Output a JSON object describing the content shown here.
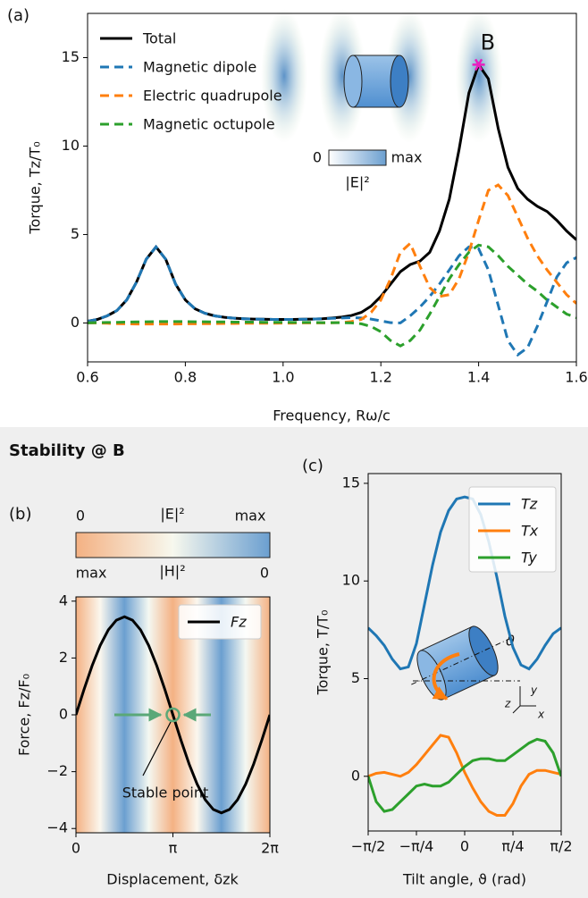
{
  "header": {
    "title": "Stability @ B"
  },
  "chart_data": [
    {
      "type": "line",
      "panel_label": "(a)",
      "x_label": "Frequency, Rω/c",
      "y_label": "Torque, Tz/T₀",
      "x": [
        0.6,
        0.62,
        0.64,
        0.66,
        0.68,
        0.7,
        0.72,
        0.74,
        0.76,
        0.78,
        0.8,
        0.82,
        0.84,
        0.86,
        0.88,
        0.9,
        0.92,
        0.94,
        0.96,
        0.98,
        1.0,
        1.02,
        1.04,
        1.06,
        1.08,
        1.1,
        1.12,
        1.14,
        1.16,
        1.18,
        1.2,
        1.22,
        1.24,
        1.26,
        1.28,
        1.3,
        1.32,
        1.34,
        1.36,
        1.38,
        1.4,
        1.42,
        1.44,
        1.46,
        1.48,
        1.5,
        1.52,
        1.54,
        1.56,
        1.58,
        1.6
      ],
      "series": [
        {
          "name": "Total",
          "color": "#000000",
          "linestyle": "solid",
          "values": [
            0.1,
            0.2,
            0.4,
            0.7,
            1.3,
            2.3,
            3.6,
            4.3,
            3.6,
            2.2,
            1.3,
            0.8,
            0.55,
            0.4,
            0.32,
            0.27,
            0.24,
            0.22,
            0.21,
            0.2,
            0.2,
            0.2,
            0.21,
            0.22,
            0.24,
            0.28,
            0.33,
            0.42,
            0.6,
            0.95,
            1.5,
            2.2,
            2.9,
            3.3,
            3.5,
            4.0,
            5.2,
            7.0,
            9.8,
            13.0,
            14.6,
            13.8,
            11.0,
            8.8,
            7.6,
            7.0,
            6.6,
            6.3,
            5.8,
            5.2,
            4.7
          ]
        },
        {
          "name": "Magnetic dipole",
          "color": "#1f77b4",
          "linestyle": "dashed",
          "values": [
            0.1,
            0.2,
            0.4,
            0.7,
            1.3,
            2.3,
            3.6,
            4.3,
            3.6,
            2.2,
            1.3,
            0.8,
            0.55,
            0.4,
            0.32,
            0.27,
            0.24,
            0.22,
            0.21,
            0.2,
            0.2,
            0.2,
            0.21,
            0.22,
            0.24,
            0.26,
            0.28,
            0.3,
            0.28,
            0.22,
            0.12,
            0.02,
            0.0,
            0.4,
            0.9,
            1.5,
            2.2,
            3.0,
            3.8,
            4.3,
            4.2,
            3.0,
            1.0,
            -1.0,
            -1.8,
            -1.4,
            -0.2,
            1.2,
            2.6,
            3.4,
            3.7
          ]
        },
        {
          "name": "Electric quadrupole",
          "color": "#ff7f0e",
          "linestyle": "dashed",
          "values": [
            0,
            0,
            -0.02,
            -0.04,
            -0.05,
            -0.06,
            -0.06,
            -0.06,
            -0.06,
            -0.06,
            -0.05,
            -0.05,
            -0.04,
            -0.04,
            -0.03,
            -0.03,
            -0.02,
            -0.02,
            -0.02,
            -0.02,
            -0.01,
            -0.01,
            0,
            0,
            0,
            0.01,
            0.03,
            0.08,
            0.2,
            0.6,
            1.3,
            2.5,
            4.0,
            4.5,
            3.2,
            2.0,
            1.5,
            1.6,
            2.5,
            4.0,
            5.8,
            7.5,
            7.8,
            7.2,
            6.0,
            4.8,
            3.8,
            3.0,
            2.3,
            1.6,
            1.1
          ]
        },
        {
          "name": "Magnetic octupole",
          "color": "#2ca02c",
          "linestyle": "dashed",
          "values": [
            0,
            0.02,
            0.03,
            0.04,
            0.05,
            0.06,
            0.07,
            0.08,
            0.08,
            0.08,
            0.08,
            0.07,
            0.07,
            0.06,
            0.06,
            0.05,
            0.05,
            0.05,
            0.04,
            0.04,
            0.04,
            0.03,
            0.03,
            0.03,
            0.02,
            0.02,
            0.01,
            0.0,
            -0.05,
            -0.2,
            -0.5,
            -1.0,
            -1.3,
            -1.0,
            -0.4,
            0.5,
            1.5,
            2.5,
            3.3,
            4.0,
            4.4,
            4.3,
            3.8,
            3.2,
            2.7,
            2.2,
            1.8,
            1.3,
            0.9,
            0.5,
            0.3
          ]
        }
      ],
      "xlim": [
        0.6,
        1.6
      ],
      "xticks": [
        0.6,
        0.8,
        {
          "value": 1,
          "label": "1.0"
        },
        1.2,
        1.4,
        1.6
      ],
      "ylim": [
        -2.2,
        17.5
      ],
      "yticks": [
        0,
        5,
        10,
        15
      ],
      "legend": "upper left",
      "legend_frame": false,
      "marker": {
        "label": "B",
        "x": 1.4,
        "y": 14.6,
        "color": "#e91ec0"
      },
      "colorbar": {
        "min_label": "0",
        "max_label": "max",
        "label": "|E|²"
      }
    },
    {
      "type": "line",
      "panel_label": "(b)",
      "x_label": "Displacement, δzk",
      "y_label": "Force, Fz/F₀",
      "x": [
        0,
        0.2618,
        0.5236,
        0.7854,
        1.0472,
        1.309,
        1.5708,
        1.8326,
        2.0944,
        2.3562,
        2.618,
        2.8798,
        3.1416,
        3.4034,
        3.6652,
        3.927,
        4.1888,
        4.4506,
        4.7124,
        4.9742,
        5.236,
        5.4978,
        5.7596,
        6.0214,
        6.2832
      ],
      "series": [
        {
          "name": "Fz",
          "color": "#000000",
          "linestyle": "solid",
          "values": [
            0,
            0.89,
            1.73,
            2.44,
            2.99,
            3.33,
            3.45,
            3.33,
            2.99,
            2.44,
            1.73,
            0.89,
            0,
            -0.89,
            -1.73,
            -2.44,
            -2.99,
            -3.33,
            -3.45,
            -3.33,
            -2.99,
            -2.44,
            -1.73,
            -0.89,
            0
          ]
        }
      ],
      "xlim": [
        0,
        6.2832
      ],
      "xticks": [
        0,
        {
          "value": 3.1416,
          "label": "π"
        },
        {
          "value": 6.2832,
          "label": "2π"
        }
      ],
      "ylim": [
        -4.15,
        4.15
      ],
      "yticks": [
        {
          "value": -4,
          "label": "−4"
        },
        {
          "value": -2,
          "label": "−2"
        },
        0,
        2,
        4
      ],
      "legend": "upper right",
      "legend_frame": true,
      "stable_point": {
        "label": "Stable point",
        "x": 3.1416,
        "y": 0
      },
      "colorbars": [
        {
          "min_label": "0",
          "label": "|E|²",
          "max_label": "max"
        },
        {
          "min_label": "max",
          "label": "|H|²",
          "max_label": "0"
        }
      ]
    },
    {
      "type": "line",
      "panel_label": "(c)",
      "x_label": "Tilt angle, ϑ (rad)",
      "y_label": "Torque, T/T₀",
      "x": [
        -1.5708,
        -1.4399,
        -1.309,
        -1.1781,
        -1.0472,
        -0.9163,
        -0.7854,
        -0.6545,
        -0.5236,
        -0.3927,
        -0.2618,
        -0.1309,
        0,
        0.1309,
        0.2618,
        0.3927,
        0.5236,
        0.6545,
        0.7854,
        0.9163,
        1.0472,
        1.1781,
        1.309,
        1.4399,
        1.5708
      ],
      "series": [
        {
          "name": "Tz",
          "color": "#1f77b4",
          "linestyle": "solid",
          "values": [
            7.6,
            7.2,
            6.7,
            6.0,
            5.5,
            5.6,
            6.8,
            8.8,
            10.8,
            12.5,
            13.6,
            14.2,
            14.3,
            14.2,
            13.4,
            12.0,
            10.2,
            8.2,
            6.6,
            5.7,
            5.5,
            6.0,
            6.7,
            7.3,
            7.6
          ]
        },
        {
          "name": "Tx",
          "color": "#ff7f0e",
          "linestyle": "solid",
          "values": [
            0,
            0.15,
            0.2,
            0.1,
            0,
            0.2,
            0.6,
            1.1,
            1.6,
            2.1,
            2.0,
            1.2,
            0.2,
            -0.6,
            -1.3,
            -1.8,
            -2.0,
            -2.0,
            -1.4,
            -0.5,
            0.1,
            0.3,
            0.3,
            0.2,
            0.1
          ]
        },
        {
          "name": "Ty",
          "color": "#2ca02c",
          "linestyle": "solid",
          "values": [
            0,
            -1.3,
            -1.8,
            -1.7,
            -1.3,
            -0.9,
            -0.5,
            -0.4,
            -0.5,
            -0.5,
            -0.3,
            0.1,
            0.5,
            0.8,
            0.9,
            0.9,
            0.8,
            0.8,
            1.1,
            1.4,
            1.7,
            1.9,
            1.8,
            1.2,
            0
          ]
        }
      ],
      "xlim": [
        -1.5708,
        1.5708
      ],
      "xticks": [
        {
          "value": -1.5708,
          "label": "−π/2"
        },
        {
          "value": -0.7854,
          "label": "−π/4"
        },
        0,
        {
          "value": 0.7854,
          "label": "π/4"
        },
        {
          "value": 1.5708,
          "label": "π/2"
        }
      ],
      "ylim": [
        -2.8,
        15.5
      ],
      "yticks": [
        0,
        5,
        10,
        15
      ],
      "legend": "upper right",
      "legend_frame": true,
      "inset_labels": {
        "angle": "ϑ",
        "y": "y",
        "z": "z",
        "x": "x"
      }
    }
  ]
}
